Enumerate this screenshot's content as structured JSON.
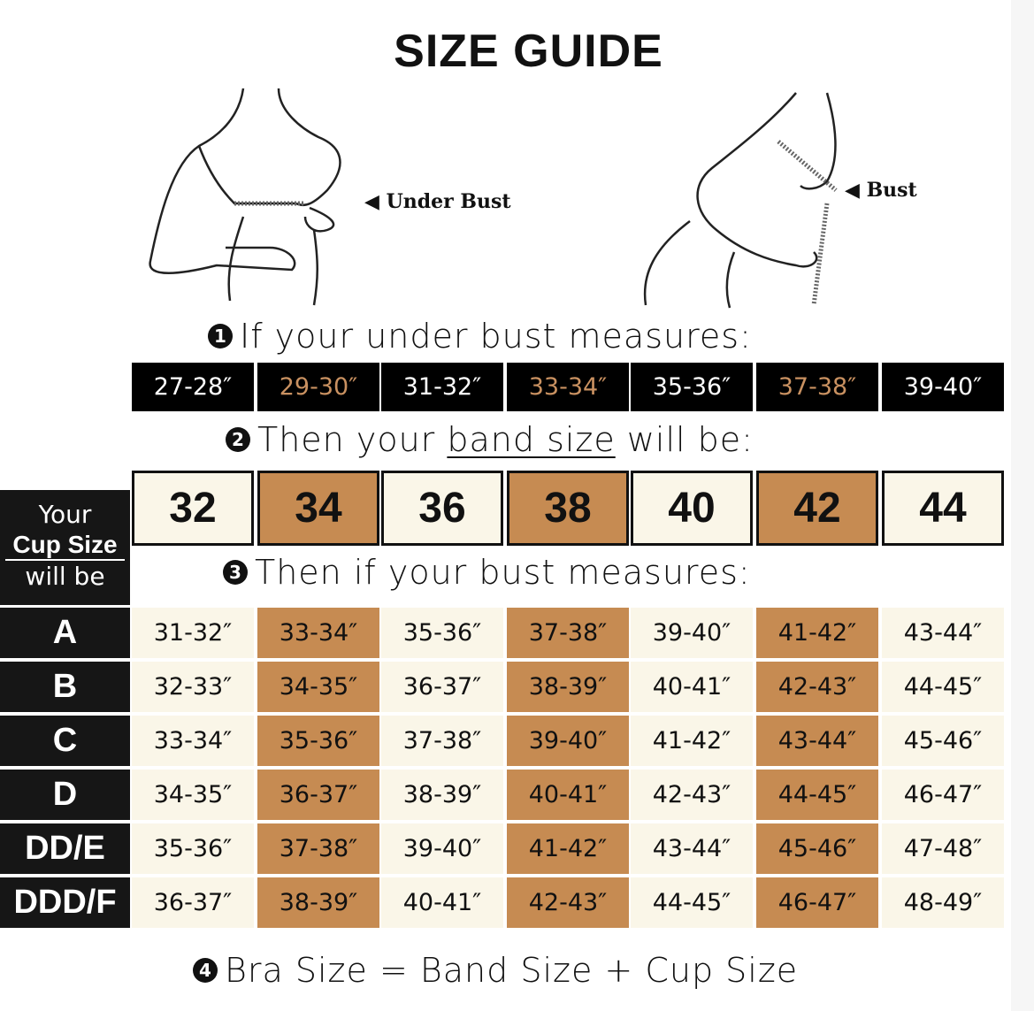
{
  "title": "SIZE GUIDE",
  "illustrations": {
    "under_bust_label": "◀ Under Bust",
    "bust_label": "◀ Bust"
  },
  "steps": {
    "s1": {
      "num": "1",
      "text": "If your under bust measures:"
    },
    "s2": {
      "num": "2",
      "pre": "Then your ",
      "underlined": "band size",
      "post": " will be:"
    },
    "s3": {
      "num": "3",
      "text": "Then if your bust measures:"
    },
    "s4": {
      "num": "4",
      "text": "Bra Size = Band Size + Cup Size"
    }
  },
  "under_bust": [
    "27-28″",
    "29-30″",
    "31-32″",
    "33-34″",
    "35-36″",
    "37-38″",
    "39-40″"
  ],
  "band_sizes": [
    "32",
    "34",
    "36",
    "38",
    "40",
    "42",
    "44"
  ],
  "cup_header": {
    "line1": "Your",
    "line2": "Cup Size",
    "line3": "will be"
  },
  "cups": [
    {
      "cup": "A",
      "values": [
        "31-32″",
        "33-34″",
        "35-36″",
        "37-38″",
        "39-40″",
        "41-42″",
        "43-44″"
      ]
    },
    {
      "cup": "B",
      "values": [
        "32-33″",
        "34-35″",
        "36-37″",
        "38-39″",
        "40-41″",
        "42-43″",
        "44-45″"
      ]
    },
    {
      "cup": "C",
      "values": [
        "33-34″",
        "35-36″",
        "37-38″",
        "39-40″",
        "41-42″",
        "43-44″",
        "45-46″"
      ]
    },
    {
      "cup": "D",
      "values": [
        "34-35″",
        "36-37″",
        "38-39″",
        "40-41″",
        "42-43″",
        "44-45″",
        "46-47″"
      ]
    },
    {
      "cup": "DD/E",
      "values": [
        "35-36″",
        "37-38″",
        "39-40″",
        "41-42″",
        "43-44″",
        "45-46″",
        "47-48″"
      ]
    },
    {
      "cup": "DDD/F",
      "values": [
        "36-37″",
        "38-39″",
        "40-41″",
        "42-43″",
        "44-45″",
        "46-47″",
        "48-49″"
      ]
    }
  ],
  "colors": {
    "accent_brown": "#c68b52",
    "cream": "#faf6e8",
    "dark": "#161616",
    "accent_text": "#c99161"
  }
}
